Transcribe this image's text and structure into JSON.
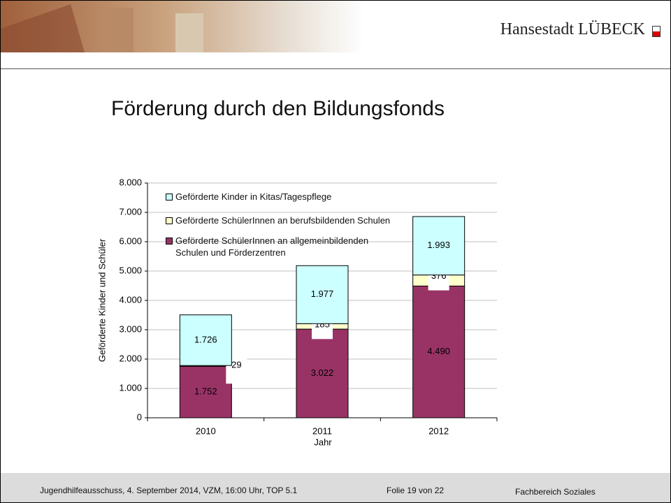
{
  "header": {
    "brand": "Hansestadt LÜBECK"
  },
  "title": "Förderung durch den Bildungsfonds",
  "chart_data": {
    "type": "stacked-bar",
    "y_label": "Geförderte Kinder und Schüler",
    "x_label": "Jahr",
    "categories": [
      "2010",
      "2011",
      "2012"
    ],
    "ylim": [
      0,
      8000
    ],
    "yticks": [
      0,
      {
        "value": 1000,
        "label": "1.000"
      },
      {
        "value": 2000,
        "label": "2.000"
      },
      {
        "value": 3000,
        "label": "3.000"
      },
      {
        "value": 4000,
        "label": "4.000"
      },
      {
        "value": 5000,
        "label": "5.000"
      },
      {
        "value": 6000,
        "label": "6.000"
      },
      {
        "value": 7000,
        "label": "7.000"
      },
      {
        "value": 8000,
        "label": "8.000"
      }
    ],
    "grid": true,
    "series": [
      {
        "name": "Geförderte SchülerInnen an allgemeinbildenden Schulen und Förderzentren",
        "color": "#993366",
        "values": [
          1752,
          3022,
          4490
        ],
        "value_labels": [
          "1.752",
          "3.022",
          "4.490"
        ]
      },
      {
        "name": "Geförderte SchülerInnen an berufsbildenden Schulen",
        "color": "#ffffcc",
        "values": [
          29,
          185,
          376
        ]
      },
      {
        "name": "Geförderte Kinder in Kitas/Tagespflege",
        "color": "#ccffff",
        "values": [
          1726,
          1977,
          1993
        ],
        "value_labels": [
          "1.726",
          "1.977",
          "1.993"
        ]
      }
    ]
  },
  "footer": {
    "left": "Jugendhilfeausschuss, 4. September 2014, VZM, 16:00 Uhr, TOP 5.1",
    "center": "Folie 19 von 22",
    "right": "Fachbereich Soziales"
  }
}
